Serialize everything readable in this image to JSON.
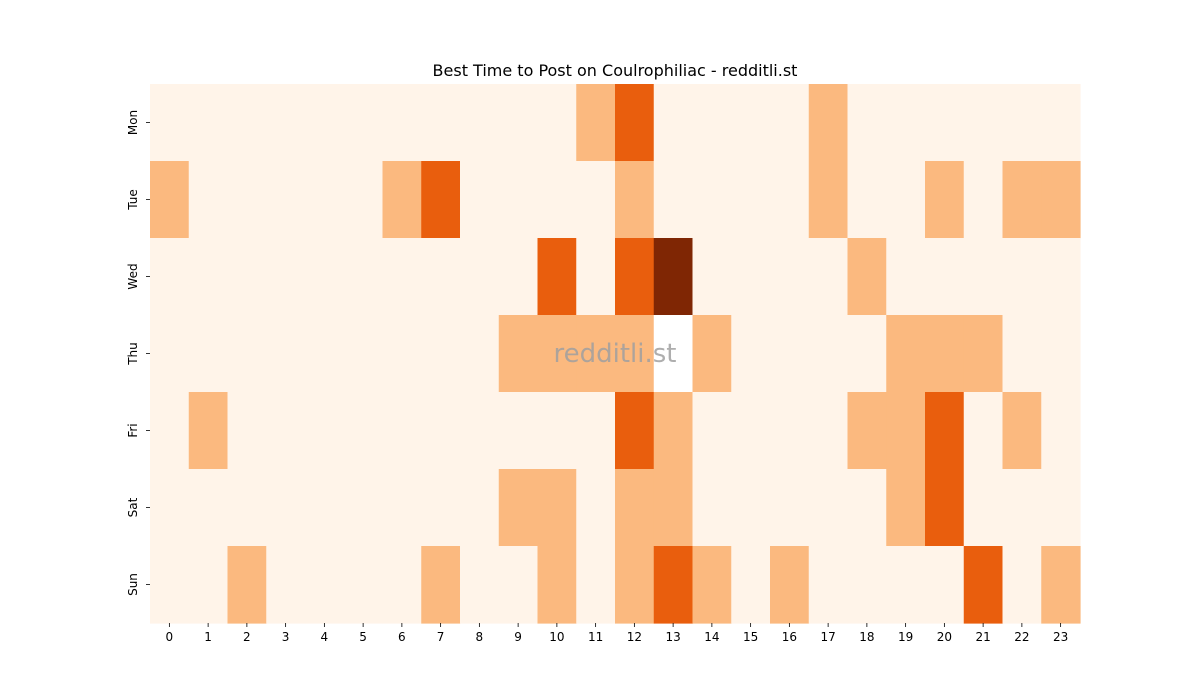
{
  "chart_data": {
    "type": "heatmap",
    "title": "Best Time to Post on Coulrophiliac - redditli.st",
    "watermark": "redditli.st",
    "x": [
      "0",
      "1",
      "2",
      "3",
      "4",
      "5",
      "6",
      "7",
      "8",
      "9",
      "10",
      "11",
      "12",
      "13",
      "14",
      "15",
      "16",
      "17",
      "18",
      "19",
      "20",
      "21",
      "22",
      "23"
    ],
    "y": [
      "Mon",
      "Tue",
      "Wed",
      "Thu",
      "Fri",
      "Sat",
      "Sun"
    ],
    "values": [
      [
        0,
        0,
        0,
        0,
        0,
        0,
        0,
        0,
        0,
        0,
        0,
        1,
        2,
        0,
        0,
        0,
        0,
        1,
        0,
        0,
        0,
        0,
        0,
        0
      ],
      [
        1,
        0,
        0,
        0,
        0,
        0,
        1,
        2,
        0,
        0,
        0,
        0,
        1,
        0,
        0,
        0,
        0,
        1,
        0,
        0,
        1,
        0,
        1,
        1
      ],
      [
        0,
        0,
        0,
        0,
        0,
        0,
        0,
        0,
        0,
        0,
        2,
        0,
        2,
        3,
        0,
        0,
        0,
        0,
        1,
        0,
        0,
        0,
        0,
        0
      ],
      [
        0,
        0,
        0,
        0,
        0,
        0,
        0,
        0,
        0,
        1,
        1,
        1,
        1,
        null,
        1,
        0,
        0,
        0,
        0,
        1,
        1,
        1,
        0,
        0
      ],
      [
        0,
        1,
        0,
        0,
        0,
        0,
        0,
        0,
        0,
        0,
        0,
        0,
        2,
        1,
        0,
        0,
        0,
        0,
        1,
        1,
        2,
        0,
        1,
        0
      ],
      [
        0,
        0,
        0,
        0,
        0,
        0,
        0,
        0,
        0,
        1,
        1,
        0,
        1,
        1,
        0,
        0,
        0,
        0,
        0,
        1,
        2,
        0,
        0,
        0
      ],
      [
        0,
        0,
        1,
        0,
        0,
        0,
        0,
        1,
        0,
        0,
        1,
        0,
        1,
        2,
        1,
        0,
        1,
        0,
        0,
        0,
        0,
        2,
        0,
        1
      ]
    ],
    "colormap": [
      "#fff4e9",
      "#fbb97f",
      "#e95e0d",
      "#7f2604"
    ],
    "missing_color": "#ffffff"
  }
}
